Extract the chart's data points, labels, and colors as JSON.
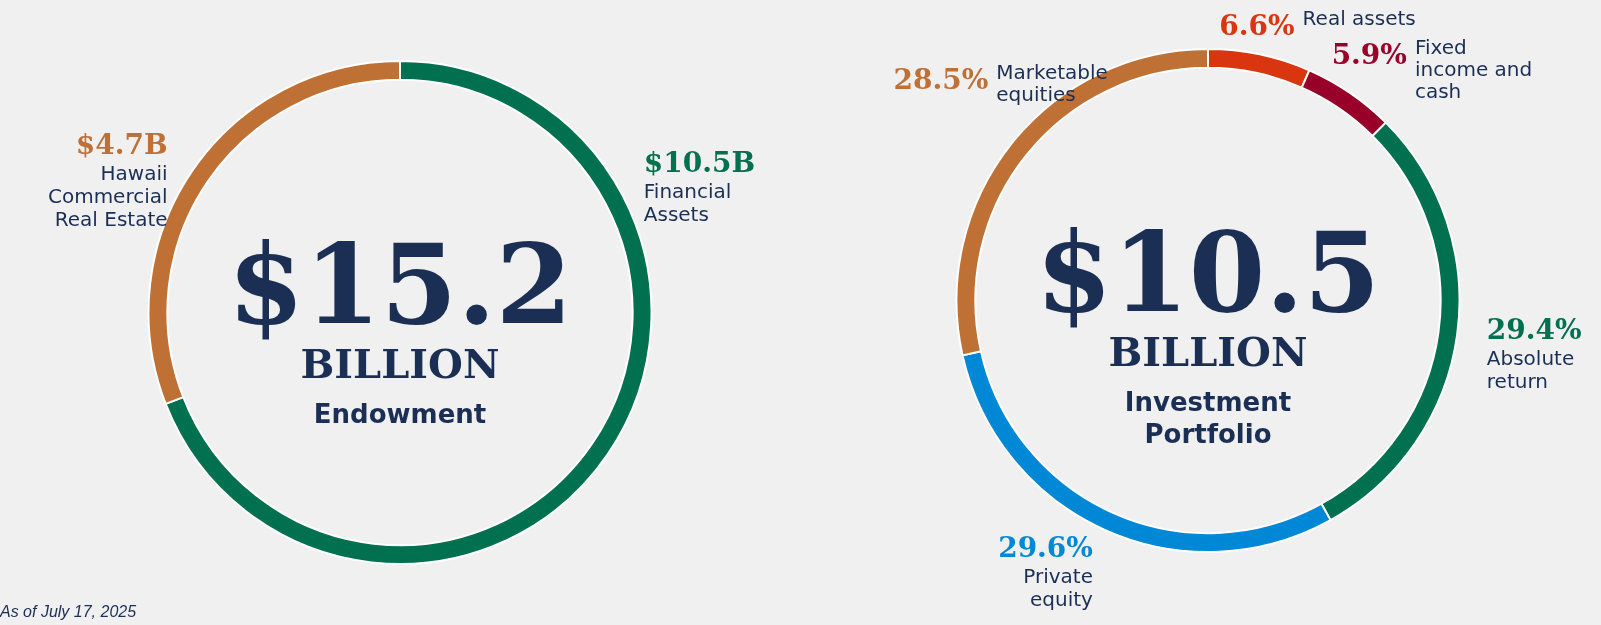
{
  "chart_data": [
    {
      "type": "donut",
      "categories": [
        "Financial Assets",
        "Hawaii Commercial Real Estate"
      ],
      "values": [
        10.5,
        4.7
      ],
      "colors": [
        "#00704f",
        "#bf7034"
      ],
      "value_labels": [
        "$10.5B",
        "$4.7B"
      ],
      "annotations": [
        "$15.2",
        "BILLION",
        "Endowment",
        "As of July 17, 2025"
      ]
    },
    {
      "type": "donut",
      "categories": [
        "Real assets",
        "Fixed income and cash",
        "Absolute return",
        "Private equity",
        "Marketable equities"
      ],
      "values": [
        6.6,
        5.9,
        29.4,
        29.6,
        28.5
      ],
      "colors": [
        "#d9360f",
        "#990029",
        "#00704f",
        "#0088d6",
        "#bf7034"
      ],
      "value_labels": [
        "6.6%",
        "5.9%",
        "29.4%",
        "29.6%",
        "28.5%"
      ],
      "annotations": [
        "$10.5",
        "BILLION",
        "Investment Portfolio"
      ]
    }
  ]
}
